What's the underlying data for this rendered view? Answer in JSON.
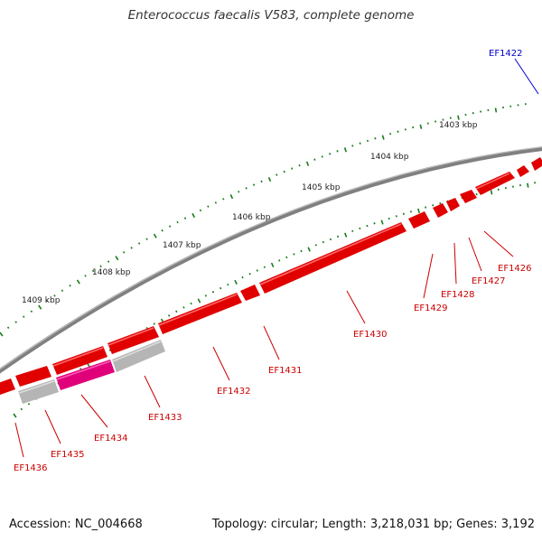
{
  "title": "Enterococcus faecalis V583, complete genome",
  "footer": {
    "accession": "Accession: NC_004668",
    "summary": "Topology: circular; Length: 3,218,031 bp; Genes: 3,192"
  },
  "colors": {
    "backbone": "#7a7a7a",
    "gene_forward": "#e00000",
    "gene_reverse_gray": "#b0b0b0",
    "gene_reverse_pink": "#e0007a",
    "tick": "#1a7a1a",
    "label_red": "#cc0000",
    "label_blue": "#0000cc"
  },
  "kbp_labels": [
    "1403 kbp",
    "1404 kbp",
    "1405 kbp",
    "1406 kbp",
    "1407 kbp",
    "1408 kbp",
    "1409 kbp"
  ],
  "genes": [
    {
      "id": "EF1422",
      "strand": "plus",
      "color": "blue"
    },
    {
      "id": "EF1426",
      "strand": "plus",
      "color": "red"
    },
    {
      "id": "EF1427",
      "strand": "plus",
      "color": "red"
    },
    {
      "id": "EF1428",
      "strand": "plus",
      "color": "red"
    },
    {
      "id": "EF1429",
      "strand": "plus",
      "color": "red"
    },
    {
      "id": "EF1430",
      "strand": "plus",
      "color": "red"
    },
    {
      "id": "EF1431",
      "strand": "plus",
      "color": "red"
    },
    {
      "id": "EF1432",
      "strand": "plus",
      "color": "red"
    },
    {
      "id": "EF1433",
      "strand": "minus",
      "color": "gray"
    },
    {
      "id": "EF1434",
      "strand": "minus",
      "color": "pink"
    },
    {
      "id": "EF1435",
      "strand": "minus",
      "color": "gray"
    },
    {
      "id": "EF1436",
      "strand": "plus",
      "color": "red"
    }
  ]
}
